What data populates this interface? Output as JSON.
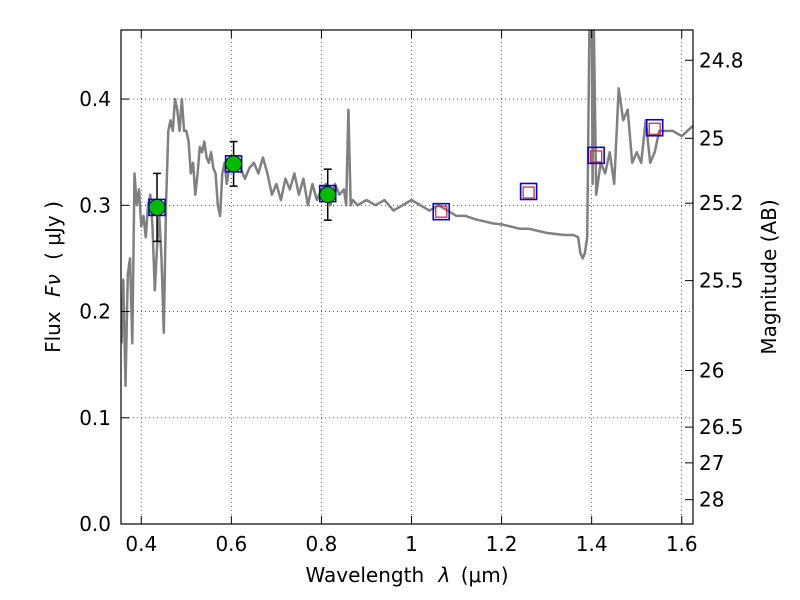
{
  "chart_data": {
    "type": "scatter",
    "x_axis": {
      "label_text": "Wavelength",
      "label_symbol": "λ",
      "label_unit": "(μm)",
      "range": [
        0.355,
        1.625
      ],
      "ticks": [
        0.4,
        0.6,
        0.8,
        1.0,
        1.2,
        1.4,
        1.6
      ],
      "tick_labels": [
        "0.4",
        "0.6",
        "0.8",
        "1",
        "1.2",
        "1.4",
        "1.6"
      ]
    },
    "y_axis": {
      "label_text": "Flux",
      "label_symbol": "Fν",
      "label_unit": "( μJy )",
      "range": [
        0.0,
        0.465
      ],
      "ticks": [
        0.0,
        0.1,
        0.2,
        0.3,
        0.4
      ],
      "tick_labels": [
        "0.0",
        "0.1",
        "0.2",
        "0.3",
        "0.4"
      ]
    },
    "y2_axis": {
      "label": "Magnitude (AB)",
      "ticks_mag": [
        24.8,
        25,
        25.2,
        25.5,
        26,
        26.5,
        27,
        28
      ],
      "tick_labels": [
        "24.8",
        "25",
        "25.2",
        "25.5",
        "26",
        "26.5",
        "27",
        "28"
      ]
    },
    "grid": true,
    "colors": {
      "model": "#808080",
      "observed": "#00bb00",
      "error": "#000000",
      "model_band": "#0000ee",
      "synthetic": "#cc3333"
    },
    "model_spectrum": {
      "x": [
        0.356,
        0.36,
        0.365,
        0.37,
        0.375,
        0.38,
        0.385,
        0.39,
        0.395,
        0.4,
        0.405,
        0.41,
        0.415,
        0.42,
        0.425,
        0.43,
        0.435,
        0.44,
        0.445,
        0.45,
        0.455,
        0.46,
        0.465,
        0.47,
        0.475,
        0.48,
        0.485,
        0.49,
        0.495,
        0.5,
        0.505,
        0.51,
        0.515,
        0.52,
        0.525,
        0.53,
        0.535,
        0.54,
        0.545,
        0.55,
        0.555,
        0.56,
        0.565,
        0.57,
        0.575,
        0.58,
        0.585,
        0.59,
        0.595,
        0.6,
        0.61,
        0.62,
        0.63,
        0.64,
        0.65,
        0.66,
        0.67,
        0.68,
        0.69,
        0.7,
        0.71,
        0.72,
        0.73,
        0.74,
        0.75,
        0.76,
        0.77,
        0.78,
        0.79,
        0.8,
        0.81,
        0.82,
        0.83,
        0.84,
        0.85,
        0.855,
        0.86,
        0.865,
        0.87,
        0.88,
        0.9,
        0.92,
        0.94,
        0.96,
        0.98,
        1.0,
        1.02,
        1.04,
        1.06,
        1.08,
        1.1,
        1.12,
        1.14,
        1.16,
        1.18,
        1.2,
        1.22,
        1.24,
        1.26,
        1.28,
        1.3,
        1.32,
        1.34,
        1.36,
        1.37,
        1.375,
        1.38,
        1.385,
        1.39,
        1.395,
        1.4,
        1.402,
        1.405,
        1.41,
        1.42,
        1.43,
        1.44,
        1.45,
        1.46,
        1.47,
        1.48,
        1.49,
        1.5,
        1.51,
        1.52,
        1.53,
        1.54,
        1.55,
        1.56,
        1.58,
        1.6,
        1.625
      ],
      "y": [
        0.17,
        0.23,
        0.13,
        0.235,
        0.25,
        0.17,
        0.33,
        0.3,
        0.315,
        0.28,
        0.29,
        0.27,
        0.3,
        0.31,
        0.28,
        0.22,
        0.26,
        0.29,
        0.25,
        0.18,
        0.3,
        0.37,
        0.38,
        0.37,
        0.4,
        0.39,
        0.37,
        0.4,
        0.37,
        0.37,
        0.36,
        0.33,
        0.34,
        0.31,
        0.33,
        0.355,
        0.35,
        0.36,
        0.345,
        0.34,
        0.35,
        0.335,
        0.33,
        0.3,
        0.29,
        0.33,
        0.34,
        0.32,
        0.335,
        0.335,
        0.345,
        0.335,
        0.325,
        0.335,
        0.34,
        0.33,
        0.345,
        0.33,
        0.31,
        0.32,
        0.305,
        0.325,
        0.315,
        0.33,
        0.31,
        0.325,
        0.3,
        0.32,
        0.305,
        0.315,
        0.32,
        0.3,
        0.32,
        0.31,
        0.315,
        0.3,
        0.39,
        0.3,
        0.305,
        0.3,
        0.305,
        0.3,
        0.305,
        0.295,
        0.3,
        0.305,
        0.3,
        0.295,
        0.3,
        0.295,
        0.29,
        0.29,
        0.287,
        0.285,
        0.283,
        0.282,
        0.28,
        0.278,
        0.278,
        0.276,
        0.274,
        0.273,
        0.272,
        0.272,
        0.27,
        0.255,
        0.25,
        0.255,
        0.27,
        0.465,
        0.48,
        0.32,
        0.465,
        0.31,
        0.34,
        0.33,
        0.35,
        0.32,
        0.41,
        0.38,
        0.39,
        0.34,
        0.35,
        0.34,
        0.38,
        0.34,
        0.35,
        0.37,
        0.37,
        0.37,
        0.365,
        0.375
      ]
    },
    "observed_points": [
      {
        "x": 0.435,
        "y": 0.298,
        "err": 0.032
      },
      {
        "x": 0.605,
        "y": 0.339,
        "err": 0.021
      },
      {
        "x": 0.814,
        "y": 0.31,
        "err": 0.024
      }
    ],
    "model_band_points": [
      {
        "x": 0.435,
        "y": 0.298
      },
      {
        "x": 0.605,
        "y": 0.339
      },
      {
        "x": 0.814,
        "y": 0.311
      },
      {
        "x": 1.066,
        "y": 0.294
      },
      {
        "x": 1.26,
        "y": 0.313
      },
      {
        "x": 1.41,
        "y": 0.347
      },
      {
        "x": 1.54,
        "y": 0.373
      }
    ],
    "synthetic_points": [
      {
        "x": 1.066,
        "y": 0.294
      },
      {
        "x": 1.26,
        "y": 0.312
      },
      {
        "x": 1.41,
        "y": 0.346
      },
      {
        "x": 1.54,
        "y": 0.372
      }
    ]
  }
}
